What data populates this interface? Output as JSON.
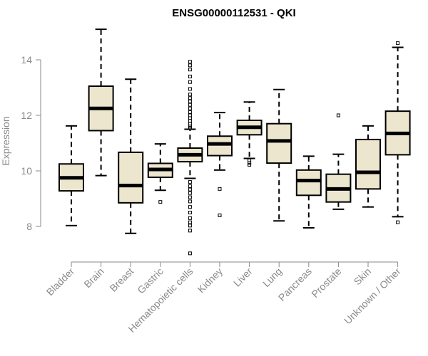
{
  "chart_data": {
    "type": "boxplot",
    "title": "ENSG00000112531 - QKI",
    "xlabel": "",
    "ylabel": "Expression",
    "ylim": [
      6.6,
      15.3
    ],
    "yticks": [
      8,
      10,
      12,
      14
    ],
    "box_fill": "#ede6ce",
    "stroke_color": "#000000",
    "axis_color": "#8a8a8a",
    "categories": [
      "Bladder",
      "Brain",
      "Breast",
      "Gastric",
      "Hematopoietic cells",
      "Kidney",
      "Liver",
      "Lung",
      "Pancreas",
      "Prostate",
      "Skin",
      "Unknown / Other"
    ],
    "boxes": [
      {
        "name": "Bladder",
        "whisker_low": 8.03,
        "q1": 9.28,
        "median": 9.75,
        "q3": 10.25,
        "whisker_high": 11.62,
        "outliers": []
      },
      {
        "name": "Brain",
        "whisker_low": 9.83,
        "q1": 11.45,
        "median": 12.25,
        "q3": 13.05,
        "whisker_high": 15.1,
        "outliers": []
      },
      {
        "name": "Breast",
        "whisker_low": 7.75,
        "q1": 8.85,
        "median": 9.47,
        "q3": 10.67,
        "whisker_high": 13.3,
        "outliers": []
      },
      {
        "name": "Gastric",
        "whisker_low": 9.3,
        "q1": 9.77,
        "median": 10.05,
        "q3": 10.27,
        "whisker_high": 10.97,
        "outliers": [
          8.88
        ]
      },
      {
        "name": "Hematopoietic cells",
        "whisker_low": 9.73,
        "q1": 10.33,
        "median": 10.58,
        "q3": 10.82,
        "whisker_high": 11.5,
        "outliers": [
          13.93,
          13.8,
          13.65,
          13.4,
          13.2,
          12.95,
          12.75,
          12.62,
          12.5,
          12.38,
          12.25,
          12.12,
          12.0,
          11.9,
          11.8,
          11.7,
          11.6,
          11.55,
          9.6,
          9.45,
          9.33,
          9.2,
          9.05,
          8.9,
          8.7,
          8.5,
          8.3,
          8.15,
          8.03,
          7.85,
          7.03
        ]
      },
      {
        "name": "Kidney",
        "whisker_low": 10.03,
        "q1": 10.55,
        "median": 10.97,
        "q3": 11.25,
        "whisker_high": 12.1,
        "outliers": [
          9.35,
          8.4
        ]
      },
      {
        "name": "Liver",
        "whisker_low": 10.45,
        "q1": 11.3,
        "median": 11.57,
        "q3": 11.82,
        "whisker_high": 12.48,
        "outliers": [
          10.38,
          10.28,
          10.22
        ]
      },
      {
        "name": "Lung",
        "whisker_low": 8.2,
        "q1": 10.28,
        "median": 11.08,
        "q3": 11.7,
        "whisker_high": 12.93,
        "outliers": []
      },
      {
        "name": "Pancreas",
        "whisker_low": 7.95,
        "q1": 9.12,
        "median": 9.65,
        "q3": 10.03,
        "whisker_high": 10.53,
        "outliers": []
      },
      {
        "name": "Prostate",
        "whisker_low": 8.62,
        "q1": 8.88,
        "median": 9.35,
        "q3": 9.88,
        "whisker_high": 10.6,
        "outliers": [
          12.0
        ]
      },
      {
        "name": "Skin",
        "whisker_low": 8.7,
        "q1": 9.35,
        "median": 9.95,
        "q3": 11.13,
        "whisker_high": 11.62,
        "outliers": []
      },
      {
        "name": "Unknown / Other",
        "whisker_low": 8.35,
        "q1": 10.58,
        "median": 11.35,
        "q3": 12.15,
        "whisker_high": 14.45,
        "outliers": [
          14.6,
          8.15
        ]
      }
    ]
  }
}
